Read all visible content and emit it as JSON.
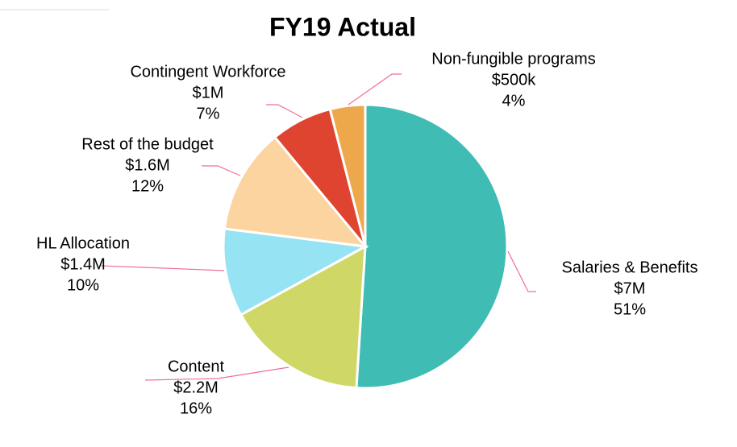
{
  "chart_data": {
    "type": "pie",
    "title": "FY19 Actual",
    "categories": [
      "Salaries & Benefits",
      "Content",
      "HL Allocation",
      "Rest of the budget",
      "Contingent Workforce",
      "Non-fungible programs"
    ],
    "values": [
      51,
      16,
      10,
      12,
      7,
      4
    ],
    "value_labels": [
      "51%",
      "16%",
      "10%",
      "12%",
      "7%",
      "4%"
    ],
    "amounts": [
      {
        "value": 7000000,
        "label": "$7M"
      },
      {
        "value": 2200000,
        "label": "$2.2M"
      },
      {
        "value": 1400000,
        "label": "$1.4M"
      },
      {
        "value": 1600000,
        "label": "$1.6M"
      },
      {
        "value": 1000000,
        "label": "$1M"
      },
      {
        "value": 500000,
        "label": "$500k"
      }
    ],
    "colors": [
      "#3fbcb4",
      "#cfd867",
      "#96e3f3",
      "#fbd4a0",
      "#de4430",
      "#eea84c"
    ]
  }
}
